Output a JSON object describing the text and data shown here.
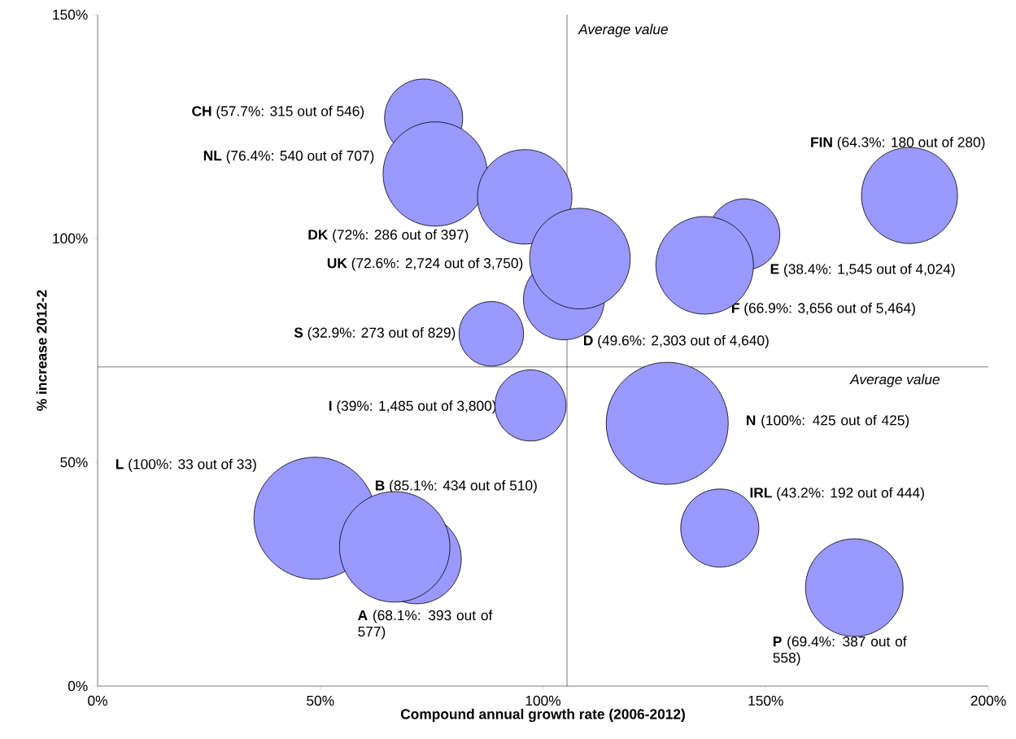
{
  "chart_data": {
    "type": "bubble",
    "xlabel": "Compound annual growth rate (2006-2012)",
    "ylabel": "% increase 2012-2",
    "xlim": [
      0,
      200
    ],
    "ylim": [
      0,
      150
    ],
    "xticks": [
      {
        "value": 0,
        "label": "0%"
      },
      {
        "value": 50,
        "label": "50%"
      },
      {
        "value": 100,
        "label": "100%"
      },
      {
        "value": 150,
        "label": "150%"
      },
      {
        "value": 200,
        "label": "200%"
      }
    ],
    "yticks": [
      {
        "value": 0,
        "label": "0%"
      },
      {
        "value": 50,
        "label": "50%"
      },
      {
        "value": 100,
        "label": "100%"
      },
      {
        "value": 150,
        "label": "150%"
      }
    ],
    "grid": false,
    "ref_lines": [
      {
        "axis": "x",
        "value": 105.4,
        "label": "Average value",
        "color": "#000000",
        "line_style": "solid"
      },
      {
        "axis": "y",
        "value": 71.3,
        "label": "Average value",
        "color": "#000000",
        "line_style": "solid"
      }
    ],
    "series": [
      {
        "color": "#9999ff",
        "x": [
          73.2,
          75.8,
          95.9,
          104.7,
          108.3,
          88.4,
          97.2,
          145.2,
          136.3,
          182.3,
          127.9,
          139.7,
          169.9,
          48.8,
          71.6,
          66.7
        ],
        "values": [
          126.9,
          114.4,
          109.3,
          86.4,
          95.5,
          78.7,
          62.7,
          100.9,
          94.0,
          109.6,
          58.7,
          35.3,
          22.0,
          37.5,
          28.4,
          31.1
        ],
        "sizes": [
          0.41,
          0.73,
          0.6,
          0.44,
          0.68,
          0.28,
          0.34,
          0.34,
          0.64,
          0.62,
          1,
          0.41,
          0.64,
          1,
          0.54,
          0.82
        ],
        "value_labels": [
          "**CH** (57.7%: 315 out of 546)",
          "**NL** (76.4%: 540 out of 707)",
          "**DK** (72%: 286 out of 397)",
          "**D** (49.6%: 2,303 out of 4,640)",
          "**UK** (72.6%: 2,724 out of 3,750)",
          "**S** (32.9%: 273 out of 829)",
          "**I** (39%: 1,485 out of 3,800)",
          "**E** (38.4%: 1,545 out of 4,024)",
          "**F** (66.9%: 3,656 out of 5,464)",
          "**FIN** (64.3%: 180 out of 280)",
          "**N** (100%: 425 out of 425)",
          "**IRL** (43.2%: 192 out of 444)",
          "**P** (69.4%: 387 out of 558)",
          "**L** (100%: 33 out of 33)",
          "**A** (68.1%: 393 out of 577)",
          "**B** (85.1%: 434 out of 510)"
        ]
      }
    ]
  }
}
